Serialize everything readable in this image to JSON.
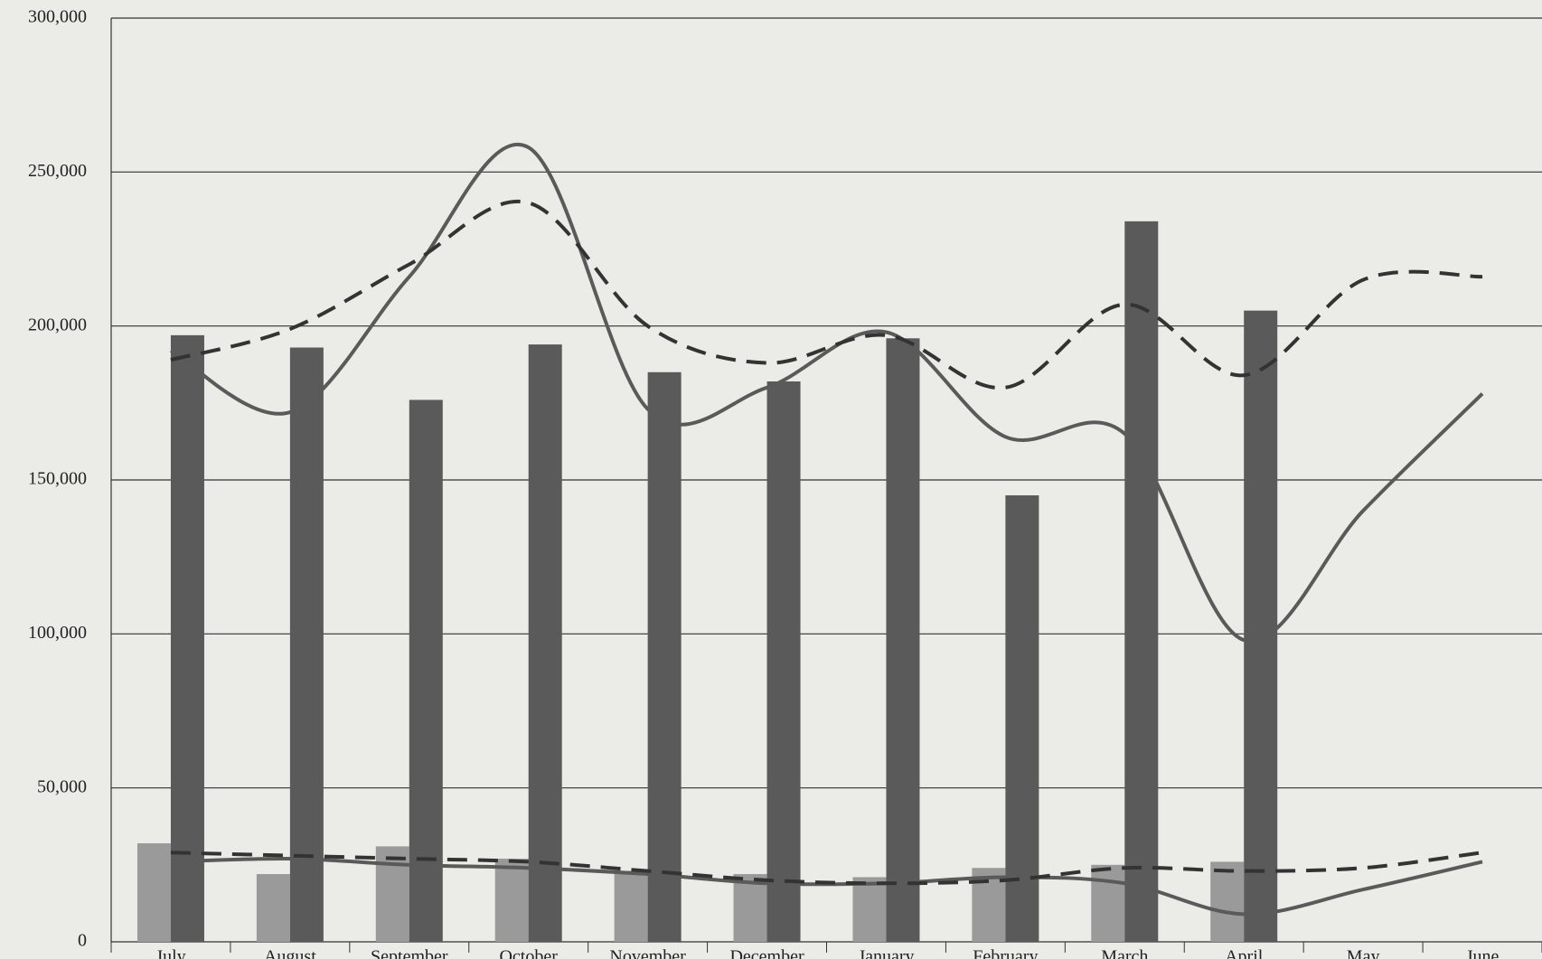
{
  "chart_data": {
    "type": "bar",
    "categories": [
      "July",
      "August",
      "September",
      "October",
      "November",
      "December",
      "January",
      "February",
      "March",
      "April",
      "May",
      "June"
    ],
    "ylim": [
      0,
      300000
    ],
    "yticks": [
      0,
      {
        "value": 50000,
        "label": "50,000"
      },
      {
        "value": 100000,
        "label": "100,000"
      },
      {
        "value": 150000,
        "label": "150,000"
      },
      {
        "value": 200000,
        "label": "200,000"
      },
      {
        "value": 250000,
        "label": "250,000"
      },
      {
        "value": 300000,
        "label": "300,000"
      }
    ],
    "grid": true,
    "series": [
      {
        "type": "bar",
        "color": "#9a9a9a",
        "values": [
          32000,
          22000,
          31000,
          27000,
          23000,
          22000,
          21000,
          24000,
          25000,
          26000,
          null,
          null
        ]
      },
      {
        "type": "bar",
        "color": "#5a5a5a",
        "values": [
          197000,
          193000,
          176000,
          194000,
          185000,
          182000,
          196000,
          145000,
          234000,
          205000,
          null,
          null
        ]
      },
      {
        "type": "line",
        "color": "#5a5a5a",
        "dashed": false,
        "values": [
          192000,
          172000,
          216000,
          258000,
          173000,
          180000,
          198000,
          164000,
          165000,
          98000,
          140000,
          178000
        ]
      },
      {
        "type": "line",
        "color": "#333333",
        "dashed": true,
        "values": [
          189000,
          199000,
          220000,
          240000,
          200000,
          188000,
          197000,
          180000,
          207000,
          184000,
          215000,
          216000
        ]
      },
      {
        "type": "line",
        "color": "#5a5a5a",
        "dashed": false,
        "values": [
          26000,
          27000,
          25000,
          24000,
          22000,
          19000,
          19000,
          21000,
          19000,
          9000,
          17000,
          26000
        ]
      },
      {
        "type": "line",
        "color": "#333333",
        "dashed": true,
        "values": [
          29000,
          28000,
          27000,
          26000,
          23000,
          20000,
          19000,
          20000,
          24000,
          23000,
          24000,
          29000
        ]
      }
    ]
  }
}
